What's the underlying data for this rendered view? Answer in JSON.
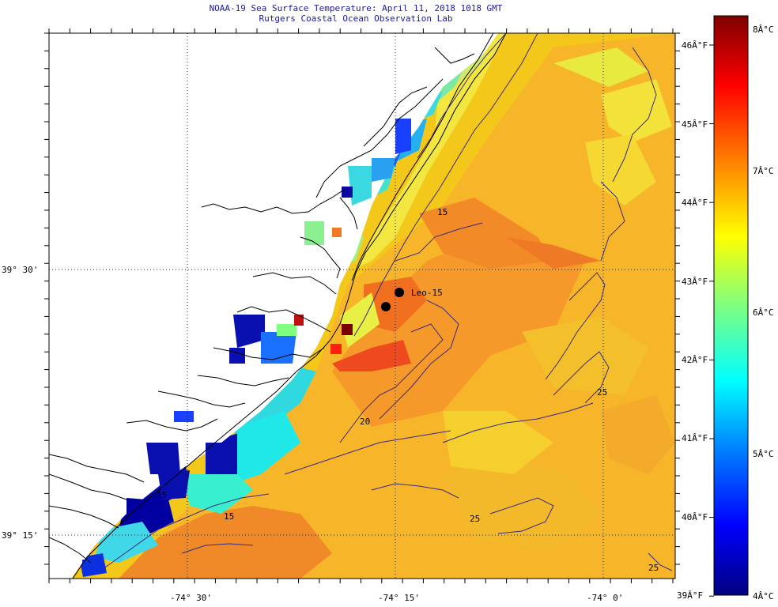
{
  "title": {
    "line1": "NOAA-19 Sea Surface Temperature:  April 11, 2018 1018 GMT",
    "line2": "Rutgers Coastal Ocean Observation Lab"
  },
  "map": {
    "lon_ticks": [
      "-74° 30'",
      "-74° 15'",
      "-74° 0'"
    ],
    "lat_ticks": [
      "39° 30'",
      "39° 15'"
    ],
    "station_label": "Leo-15",
    "contour_labels": [
      "15",
      "15",
      "20",
      "15",
      "25",
      "25",
      "25"
    ]
  },
  "colorbar": {
    "celsius": [
      "8Â°C",
      "7Â°C",
      "6Â°C",
      "5Â°C",
      "4Â°C"
    ],
    "fahrenheit": [
      "46Â°F",
      "45Â°F",
      "44Â°F",
      "43Â°F",
      "42Â°F",
      "41Â°F",
      "40Â°F",
      "39Â°F"
    ],
    "colors": [
      "#00007f",
      "#0000ff",
      "#007fff",
      "#00ffff",
      "#7fff7f",
      "#ffff00",
      "#ff7f00",
      "#ff0000",
      "#7f0000"
    ]
  }
}
